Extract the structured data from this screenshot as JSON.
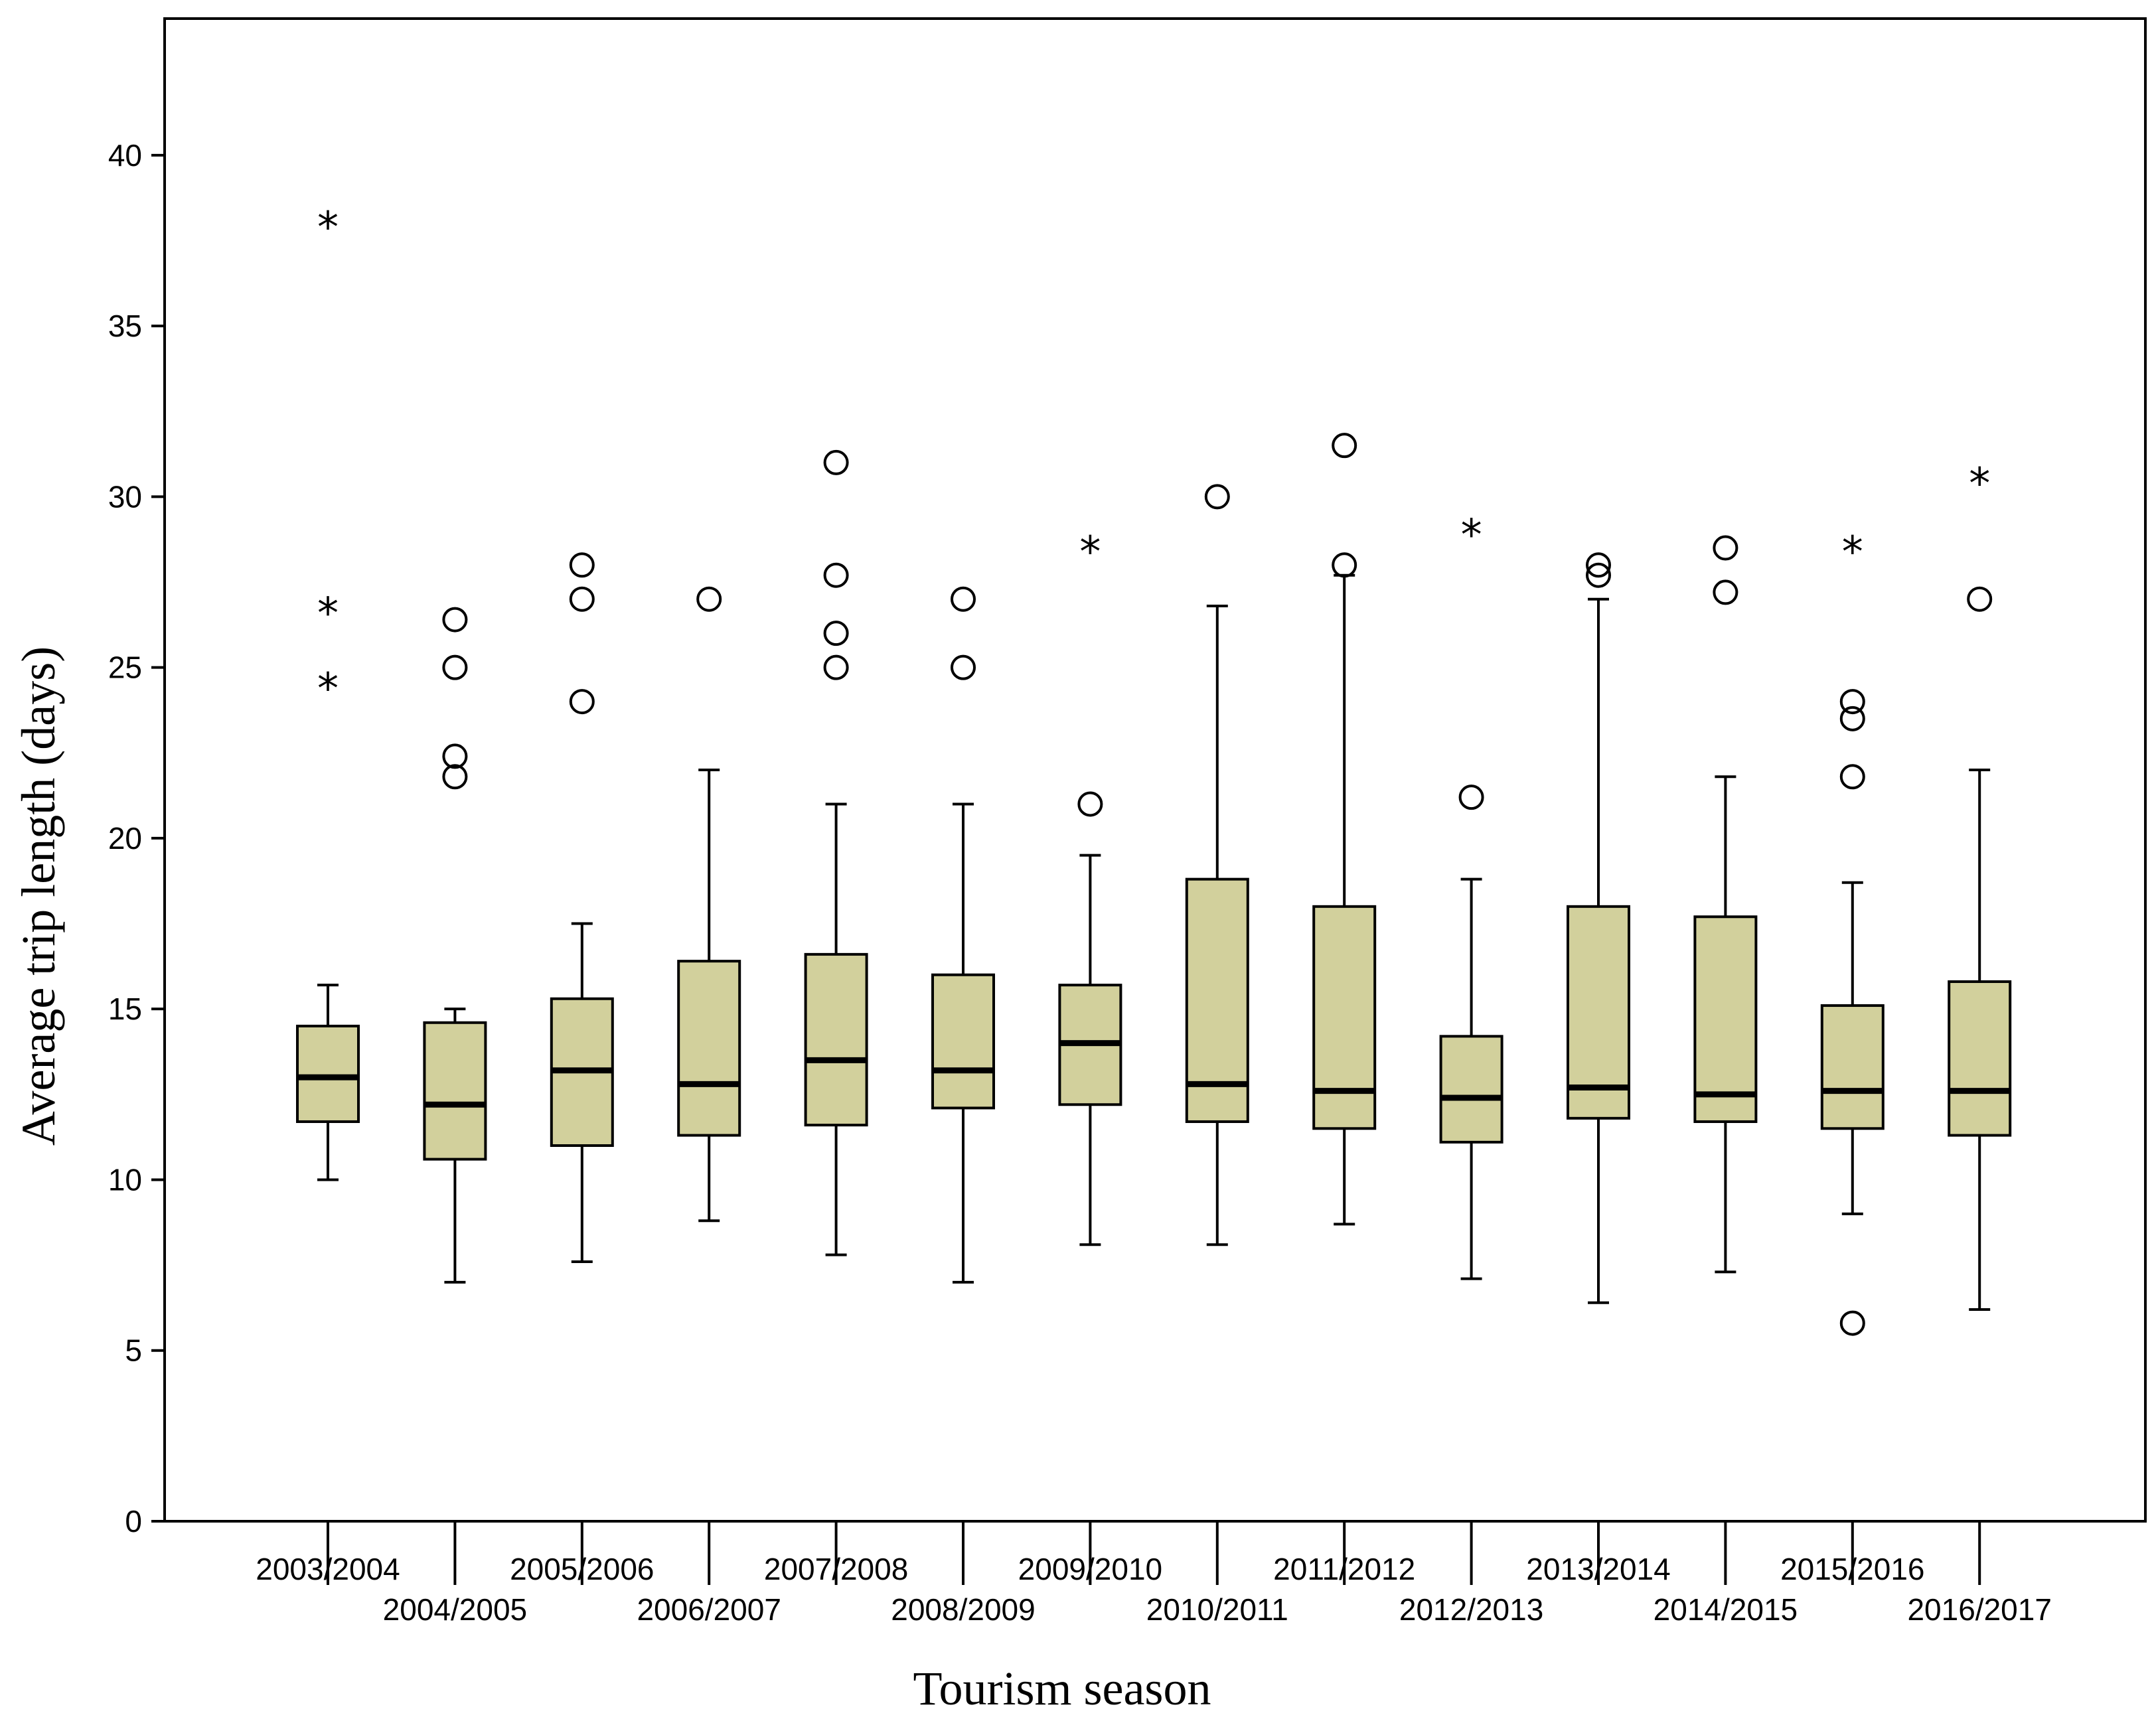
{
  "chart_data": {
    "type": "boxplot",
    "title": "",
    "xlabel": "Tourism season",
    "ylabel": "Average trip length (days)",
    "ylim": [
      0,
      44
    ],
    "yticks": [
      0,
      5,
      10,
      15,
      20,
      25,
      30,
      35,
      40
    ],
    "grid": false,
    "box_color": "#d2d09c",
    "line_color": "#000000",
    "categories": [
      "2003/2004",
      "2004/2005",
      "2005/2006",
      "2006/2007",
      "2007/2008",
      "2008/2009",
      "2009/2010",
      "2010/2011",
      "2011/2012",
      "2012/2013",
      "2013/2014",
      "2014/2015",
      "2015/2016",
      "2016/2017"
    ],
    "boxes": [
      {
        "season": "2003/2004",
        "whisker_low": 10.0,
        "q1": 11.7,
        "median": 13.0,
        "q3": 14.5,
        "whisker_high": 15.7,
        "outliers": [],
        "extremes": [
          38.0,
          26.7,
          24.5
        ]
      },
      {
        "season": "2004/2005",
        "whisker_low": 7.0,
        "q1": 10.6,
        "median": 12.2,
        "q3": 14.6,
        "whisker_high": 15.0,
        "outliers": [
          26.4,
          25.0,
          22.4,
          21.8
        ],
        "extremes": []
      },
      {
        "season": "2005/2006",
        "whisker_low": 7.6,
        "q1": 11.0,
        "median": 13.2,
        "q3": 15.3,
        "whisker_high": 17.5,
        "outliers": [
          28.0,
          27.0,
          24.0
        ],
        "extremes": []
      },
      {
        "season": "2006/2007",
        "whisker_low": 8.8,
        "q1": 11.3,
        "median": 12.8,
        "q3": 16.4,
        "whisker_high": 22.0,
        "outliers": [
          27.0
        ],
        "extremes": []
      },
      {
        "season": "2007/2008",
        "whisker_low": 7.8,
        "q1": 11.6,
        "median": 13.5,
        "q3": 16.6,
        "whisker_high": 21.0,
        "outliers": [
          31.0,
          27.7,
          26.0,
          25.0
        ],
        "extremes": []
      },
      {
        "season": "2008/2009",
        "whisker_low": 7.0,
        "q1": 12.1,
        "median": 13.2,
        "q3": 16.0,
        "whisker_high": 21.0,
        "outliers": [
          27.0,
          25.0
        ],
        "extremes": []
      },
      {
        "season": "2009/2010",
        "whisker_low": 8.1,
        "q1": 12.2,
        "median": 14.0,
        "q3": 15.7,
        "whisker_high": 19.5,
        "outliers": [
          21.0
        ],
        "extremes": [
          28.5
        ]
      },
      {
        "season": "2010/2011",
        "whisker_low": 8.1,
        "q1": 11.7,
        "median": 12.8,
        "q3": 18.8,
        "whisker_high": 26.8,
        "outliers": [
          30.0
        ],
        "extremes": []
      },
      {
        "season": "2011/2012",
        "whisker_low": 8.7,
        "q1": 11.5,
        "median": 12.6,
        "q3": 18.0,
        "whisker_high": 27.7,
        "outliers": [
          31.5,
          28.0
        ],
        "extremes": []
      },
      {
        "season": "2012/2013",
        "whisker_low": 7.1,
        "q1": 11.1,
        "median": 12.4,
        "q3": 14.2,
        "whisker_high": 18.8,
        "outliers": [
          21.2
        ],
        "extremes": [
          29.0
        ]
      },
      {
        "season": "2013/2014",
        "whisker_low": 6.4,
        "q1": 11.8,
        "median": 12.7,
        "q3": 18.0,
        "whisker_high": 27.0,
        "outliers": [
          28.0,
          27.7
        ],
        "extremes": []
      },
      {
        "season": "2014/2015",
        "whisker_low": 7.3,
        "q1": 11.7,
        "median": 12.5,
        "q3": 17.7,
        "whisker_high": 21.8,
        "outliers": [
          28.5,
          27.2
        ],
        "extremes": []
      },
      {
        "season": "2015/2016",
        "whisker_low": 9.0,
        "q1": 11.5,
        "median": 12.6,
        "q3": 15.1,
        "whisker_high": 18.7,
        "outliers": [
          24.0,
          23.5,
          21.8,
          5.8
        ],
        "extremes": [
          28.5
        ]
      },
      {
        "season": "2016/2017",
        "whisker_low": 6.2,
        "q1": 11.3,
        "median": 12.6,
        "q3": 15.8,
        "whisker_high": 22.0,
        "outliers": [
          27.0
        ],
        "extremes": [
          30.5
        ]
      }
    ]
  }
}
